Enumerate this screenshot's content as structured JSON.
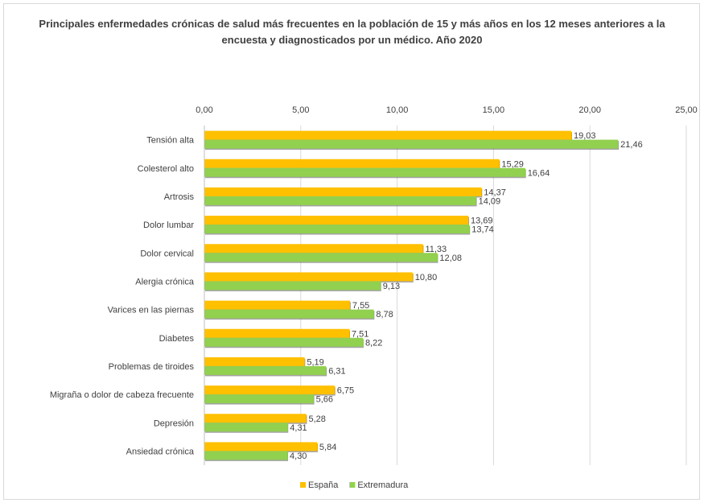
{
  "chart_data": {
    "type": "bar",
    "orientation": "horizontal",
    "title": "Principales enfermedades crónicas de salud más frecuentes en la población de 15 y más años en los 12 meses anteriores a la encuesta y diagnosticados por un médico. Año 2020",
    "categories": [
      "Tensión alta",
      "Colesterol alto",
      "Artrosis",
      "Dolor lumbar",
      "Dolor cervical",
      "Alergia crónica",
      "Varices en las piernas",
      "Diabetes",
      "Problemas de tiroides",
      "Migraña o dolor de cabeza frecuente",
      "Depresión",
      "Ansiedad crónica"
    ],
    "series": [
      {
        "name": "España",
        "color": "#FFC000",
        "values": [
          19.03,
          15.29,
          14.37,
          13.69,
          11.33,
          10.8,
          7.55,
          7.51,
          5.19,
          6.75,
          5.28,
          5.84
        ],
        "labels": [
          "19,03",
          "15,29",
          "14,37",
          "13,69",
          "11,33",
          "10,80",
          "7,55",
          "7,51",
          "5,19",
          "6,75",
          "5,28",
          "5,84"
        ]
      },
      {
        "name": "Extremadura",
        "color": "#92D050",
        "values": [
          21.46,
          16.64,
          14.09,
          13.74,
          12.08,
          9.13,
          8.78,
          8.22,
          6.31,
          5.66,
          4.31,
          4.3
        ],
        "labels": [
          "21,46",
          "16,64",
          "14,09",
          "13,74",
          "12,08",
          "9,13",
          "8,78",
          "8,22",
          "6,31",
          "5,66",
          "4,31",
          "4,30"
        ]
      }
    ],
    "xlim": [
      0,
      25
    ],
    "ticks": [
      0,
      5,
      10,
      15,
      20,
      25
    ],
    "tick_labels": [
      "0,00",
      "5,00",
      "10,00",
      "15,00",
      "20,00",
      "25,00"
    ],
    "axis_position": "top",
    "grid": true,
    "legend_position": "bottom"
  }
}
